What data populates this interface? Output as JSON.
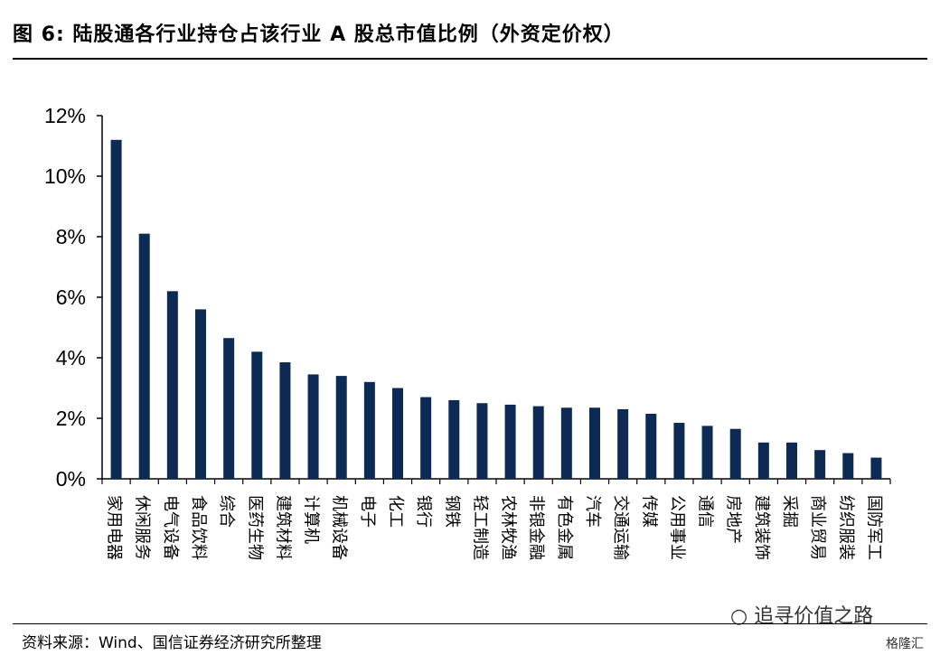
{
  "figure": {
    "title": "图 6:  陆股通各行业持仓占该行业 A 股总市值比例（外资定价权）",
    "source": "资料来源：Wind、国信证券经济研究所整理",
    "watermark": "追寻价值之路",
    "brand": "格隆汇"
  },
  "chart_data": {
    "type": "bar",
    "title": "",
    "xlabel": "",
    "ylabel": "",
    "ylim": [
      0,
      12
    ],
    "yticks": [
      "0%",
      "2%",
      "4%",
      "6%",
      "8%",
      "10%",
      "12%"
    ],
    "bar_color": "#0d2a54",
    "grid": false,
    "categories": [
      "家用电器",
      "休闲服务",
      "电气设备",
      "食品饮料",
      "综合",
      "医药生物",
      "建筑材料",
      "计算机",
      "机械设备",
      "电子",
      "化工",
      "银行",
      "钢铁",
      "轻工制造",
      "农林牧渔",
      "非银金融",
      "有色金属",
      "汽车",
      "交通运输",
      "传媒",
      "公用事业",
      "通信",
      "房地产",
      "建筑装饰",
      "采掘",
      "商业贸易",
      "纺织服装",
      "国防军工"
    ],
    "values": [
      11.2,
      8.1,
      6.2,
      5.6,
      4.65,
      4.2,
      3.85,
      3.45,
      3.4,
      3.2,
      3.0,
      2.7,
      2.6,
      2.5,
      2.45,
      2.4,
      2.35,
      2.35,
      2.3,
      2.15,
      1.85,
      1.75,
      1.65,
      1.2,
      1.2,
      0.95,
      0.85,
      0.7
    ]
  }
}
